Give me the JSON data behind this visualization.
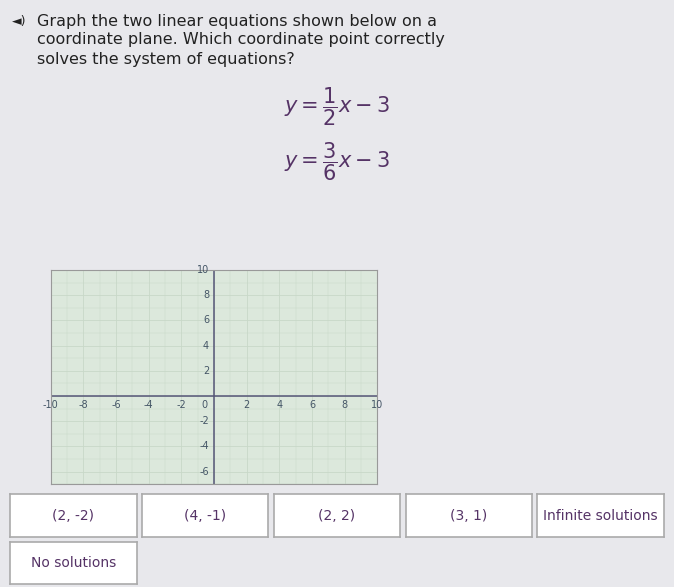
{
  "title_line1": "Graph the two linear equations shown below on a",
  "title_line2": "coordinate plane. Which coordinate point correctly",
  "title_line3": "solves the system of equations?",
  "grid_xlim": [
    -10,
    10
  ],
  "grid_ylim": [
    -7,
    10
  ],
  "grid_xlabel_vals": [
    -10,
    -8,
    -6,
    -4,
    -2,
    2,
    4,
    6,
    8,
    10
  ],
  "grid_ylabel_vals": [
    -6,
    -4,
    -2,
    2,
    4,
    6,
    8,
    10
  ],
  "grid_minor_color": "#c8d8c8",
  "grid_major_color": "#b0c8b0",
  "grid_bg": "#dce8dc",
  "axis_color": "#555577",
  "tick_color": "#445566",
  "answer_buttons": [
    "(2, -2)",
    "(4, -1)",
    "(2, 2)",
    "(3, 1)",
    "Infinite solutions"
  ],
  "answer_buttons_row2": [
    "No solutions"
  ],
  "button_bg": "#ffffff",
  "button_border": "#aaaaaa",
  "bg_color": "#e8e8ec",
  "text_color": "#222222",
  "eq_color": "#553366",
  "btn_text_color": "#553366",
  "font_size_title": 11.5,
  "font_size_eq": 15,
  "font_size_btn": 10,
  "font_size_axis": 7,
  "line1_slope": 0.5,
  "line1_intercept": -3,
  "line2_slope": 0.5,
  "line2_intercept": -3
}
